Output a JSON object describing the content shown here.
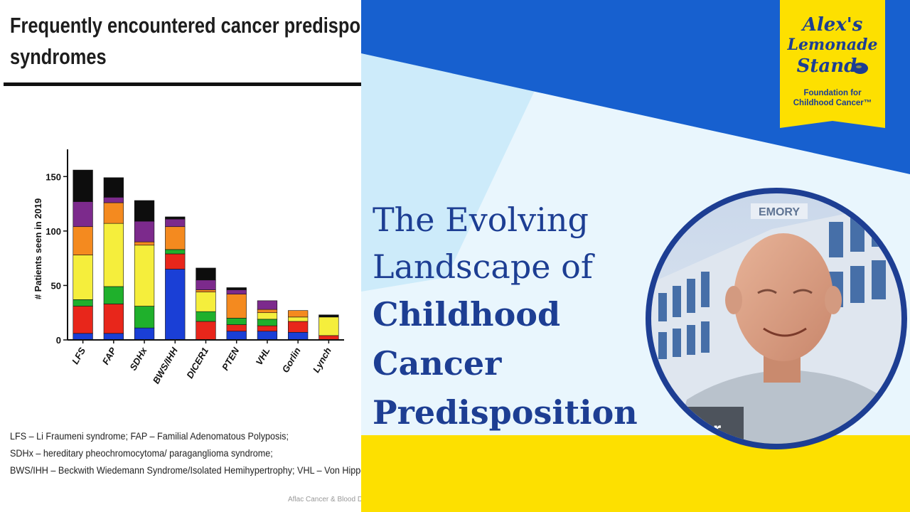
{
  "slide": {
    "title_line1": "Frequently encountered cancer predispos",
    "title_line2": "syndromes",
    "legend_line1": "LFS – Li Fraumeni syndrome; FAP – Familial Adenomatous Polyposis;",
    "legend_line2": "SDHx – hereditary pheochromocytoma/ paraganglioma syndrome;",
    "legend_line3": "BWS/IHH – Beckwith Wiedemann Syndrome/Isolated Hemihypertrophy; VHL – Von Hippel L",
    "footer": "Aflac Cancer & Blood D"
  },
  "chart_data": {
    "type": "bar",
    "stacked": true,
    "ylabel": "# Patients seen in 2019",
    "ylim": [
      0,
      175
    ],
    "yticks": [
      0,
      50,
      100,
      150
    ],
    "categories": [
      "LFS",
      "FAP",
      "SDHx",
      "BWS/IHH",
      "DICER1",
      "PTEN",
      "VHL",
      "Gorlin",
      "Lynch"
    ],
    "series": [
      {
        "color": "#1a3fd6",
        "values": [
          6,
          6,
          11,
          65,
          0,
          8,
          8,
          7,
          0
        ]
      },
      {
        "color": "#e8261b",
        "values": [
          25,
          27,
          0,
          14,
          17,
          6,
          5,
          10,
          4
        ]
      },
      {
        "color": "#1fb02c",
        "values": [
          6,
          16,
          20,
          4,
          9,
          6,
          6,
          0,
          0
        ]
      },
      {
        "color": "#f5ee3c",
        "values": [
          41,
          58,
          56,
          0,
          18,
          0,
          6,
          4,
          17
        ]
      },
      {
        "color": "#f48a1f",
        "values": [
          26,
          19,
          3,
          21,
          2,
          22,
          3,
          6,
          0
        ]
      },
      {
        "color": "#7c2a8c",
        "values": [
          23,
          5,
          19,
          7,
          9,
          4,
          8,
          0,
          0
        ]
      },
      {
        "color": "#0d0d0d",
        "values": [
          29,
          18,
          19,
          2,
          11,
          2,
          0,
          0,
          2
        ]
      }
    ]
  },
  "headline": {
    "line1": "The Evolving",
    "line2": "Landscape of",
    "line3": "Childhood",
    "line4": "Cancer",
    "line5": "Predisposition"
  },
  "logo": {
    "line1": "Alex's",
    "line2": "Lemonade",
    "line3": "Stand",
    "sub1": "Foundation for",
    "sub2": "Childhood Cancer™"
  },
  "video": {
    "name_tag": "ter",
    "building_sign": "EMORY"
  },
  "colors": {
    "brand_blue": "#1d3e93",
    "panel_blue": "#1760cf",
    "brand_yellow": "#fde000",
    "panel_light": "#e9f6fd"
  }
}
